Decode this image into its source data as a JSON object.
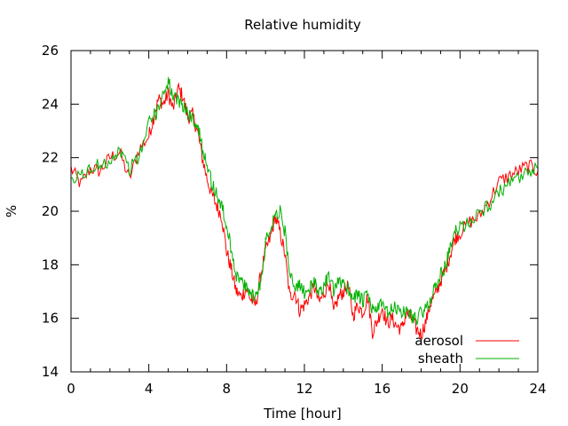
{
  "chart_data": {
    "type": "line",
    "title": "Relative humidity",
    "xlabel": "Time [hour]",
    "ylabel": "%",
    "xlim": [
      0,
      24
    ],
    "ylim": [
      14,
      26
    ],
    "xticks": [
      0,
      4,
      8,
      12,
      16,
      20,
      24
    ],
    "yticks": [
      14,
      16,
      18,
      20,
      22,
      24,
      26
    ],
    "grid": false,
    "legend_position": "bottom-right",
    "series": [
      {
        "name": "aerosol",
        "color": "#ff0000",
        "x": [
          0,
          0.5,
          1,
          1.5,
          2,
          2.5,
          3,
          3.5,
          4,
          4.25,
          4.5,
          4.75,
          5,
          5.25,
          5.5,
          5.75,
          6,
          6.25,
          6.5,
          6.75,
          7,
          7.25,
          7.5,
          7.75,
          8,
          8.25,
          8.5,
          8.75,
          9,
          9.25,
          9.5,
          9.75,
          10,
          10.25,
          10.5,
          10.75,
          11,
          11.25,
          11.5,
          11.75,
          12,
          12.25,
          12.5,
          12.75,
          13,
          13.25,
          13.5,
          13.75,
          14,
          14.25,
          14.5,
          14.75,
          15,
          15.25,
          15.5,
          15.75,
          16,
          16.25,
          16.5,
          16.75,
          17,
          17.25,
          17.5,
          17.75,
          18,
          18.25,
          18.5,
          18.75,
          19,
          19.25,
          19.5,
          19.75,
          20,
          20.5,
          21,
          21.5,
          22,
          22.5,
          23,
          23.5,
          24
        ],
        "y": [
          21.6,
          21.0,
          21.6,
          21.5,
          22.0,
          22.2,
          21.2,
          22.3,
          22.8,
          23.5,
          24.2,
          24.0,
          24.4,
          23.8,
          24.6,
          24.3,
          23.5,
          23.6,
          23.0,
          22.0,
          21.2,
          20.6,
          20.2,
          19.8,
          18.5,
          17.8,
          17.0,
          16.8,
          17.1,
          16.7,
          16.5,
          17.6,
          18.5,
          19.0,
          19.8,
          19.2,
          18.4,
          16.8,
          17.0,
          16.3,
          16.5,
          16.8,
          17.2,
          16.6,
          16.9,
          17.4,
          16.2,
          16.8,
          17.0,
          17.2,
          16.1,
          16.5,
          16.2,
          16.8,
          15.5,
          15.9,
          16.4,
          15.8,
          16.0,
          15.7,
          15.6,
          16.2,
          16.0,
          15.6,
          15.4,
          15.9,
          16.6,
          16.9,
          17.4,
          17.8,
          18.4,
          19.0,
          19.2,
          19.6,
          19.8,
          20.4,
          21.1,
          21.3,
          21.5,
          21.7,
          21.5
        ]
      },
      {
        "name": "sheath",
        "color": "#00b000",
        "x": [
          0,
          0.5,
          1,
          1.5,
          2,
          2.5,
          3,
          3.5,
          4,
          4.25,
          4.5,
          4.75,
          5,
          5.25,
          5.5,
          5.75,
          6,
          6.25,
          6.5,
          6.75,
          7,
          7.25,
          7.5,
          7.75,
          8,
          8.25,
          8.5,
          8.75,
          9,
          9.25,
          9.5,
          9.75,
          10,
          10.25,
          10.5,
          10.75,
          11,
          11.25,
          11.5,
          11.75,
          12,
          12.25,
          12.5,
          12.75,
          13,
          13.25,
          13.5,
          13.75,
          14,
          14.25,
          14.5,
          14.75,
          15,
          15.25,
          15.5,
          15.75,
          16,
          16.25,
          16.5,
          16.75,
          17,
          17.25,
          17.5,
          17.75,
          18,
          18.25,
          18.5,
          18.75,
          19,
          19.25,
          19.5,
          19.75,
          20,
          20.5,
          21,
          21.5,
          22,
          22.5,
          23,
          23.5,
          24
        ],
        "y": [
          21.0,
          21.4,
          21.5,
          21.8,
          21.9,
          22.3,
          21.6,
          22.0,
          23.3,
          23.5,
          23.9,
          24.4,
          24.9,
          24.2,
          24.1,
          24.0,
          23.6,
          23.5,
          23.2,
          22.4,
          21.8,
          21.0,
          20.6,
          20.2,
          19.4,
          18.6,
          17.6,
          17.4,
          17.1,
          17.0,
          16.8,
          17.4,
          18.8,
          19.4,
          19.9,
          20.0,
          19.2,
          17.8,
          17.0,
          17.2,
          17.0,
          17.1,
          17.3,
          17.0,
          17.2,
          17.6,
          17.0,
          17.3,
          17.4,
          17.1,
          16.8,
          16.9,
          16.6,
          16.9,
          16.3,
          16.4,
          16.5,
          16.2,
          16.3,
          16.4,
          16.2,
          16.3,
          16.1,
          16.0,
          16.2,
          16.3,
          16.8,
          17.2,
          17.6,
          18.0,
          18.6,
          19.2,
          19.4,
          19.6,
          20.0,
          20.2,
          20.7,
          21.0,
          21.2,
          21.4,
          21.6
        ]
      }
    ]
  }
}
